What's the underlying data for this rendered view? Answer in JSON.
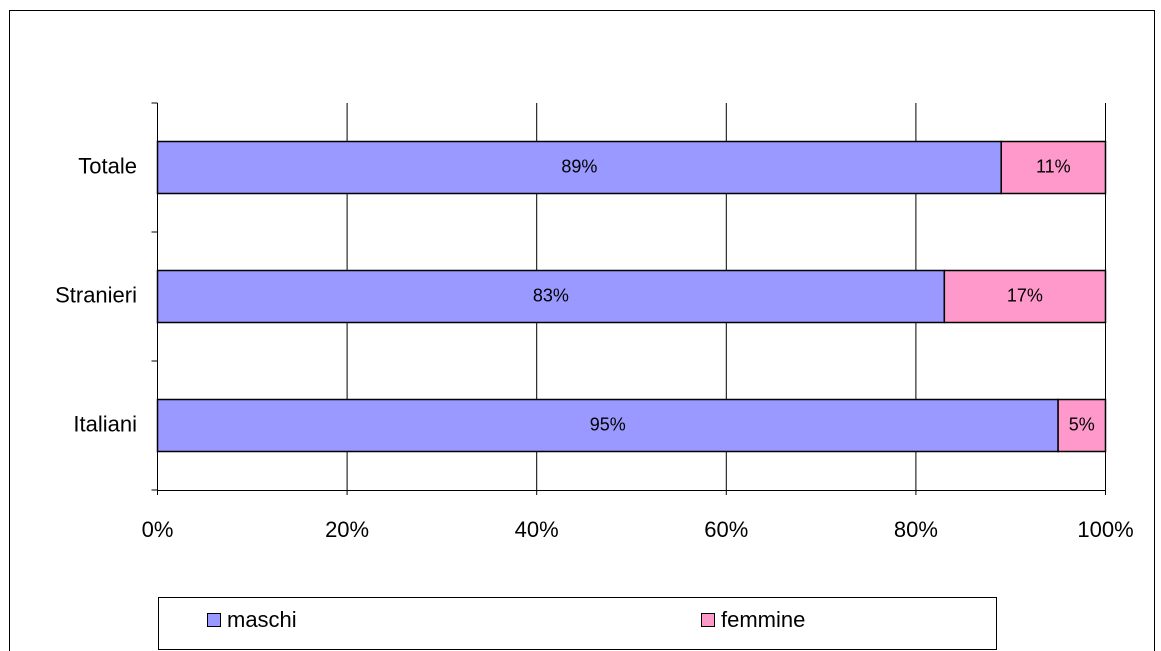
{
  "chart_data": {
    "type": "stacked-bar-horizontal",
    "categories": [
      "Totale",
      "Stranieri",
      "Italiani"
    ],
    "series": [
      {
        "name": "maschi",
        "color": "#9999ff",
        "values": [
          89,
          83,
          95
        ],
        "value_labels": [
          "89%",
          "83%",
          "95%"
        ]
      },
      {
        "name": "femmine",
        "color": "#ff99cc",
        "values": [
          11,
          17,
          5
        ],
        "value_labels": [
          "11%",
          "17%",
          "5%"
        ]
      }
    ],
    "xlim": [
      0,
      100
    ],
    "xticks": [
      {
        "value": 0,
        "label": "0%"
      },
      {
        "value": 20,
        "label": "20%"
      },
      {
        "value": 40,
        "label": "40%"
      },
      {
        "value": 60,
        "label": "60%"
      },
      {
        "value": 80,
        "label": "80%"
      },
      {
        "value": 100,
        "label": "100%"
      }
    ],
    "grid": true
  }
}
